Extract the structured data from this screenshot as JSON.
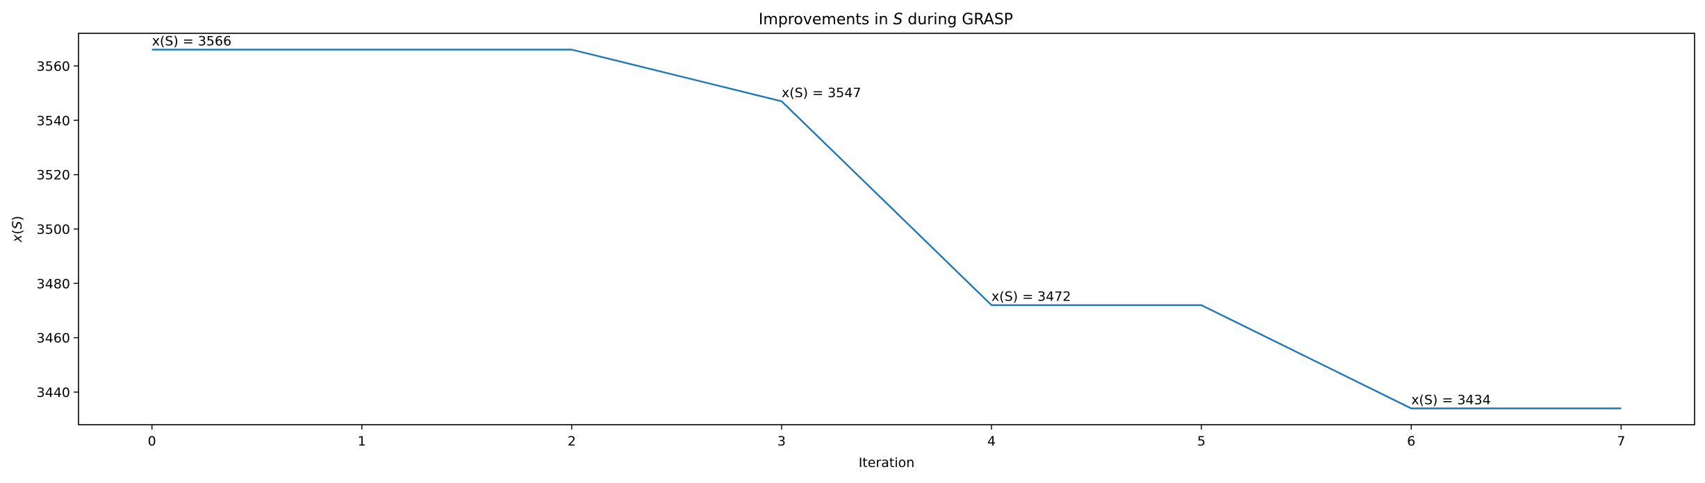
{
  "chart_data": {
    "type": "line",
    "title": "Improvements in S during GRASP",
    "title_parts": {
      "prefix": "Improvements in ",
      "italic": "S",
      "suffix": " during GRASP"
    },
    "xlabel": "Iteration",
    "ylabel": "x(S)",
    "ylabel_parts": {
      "italic_1": "x",
      "plain_1": "(",
      "italic_2": "S",
      "plain_2": ")"
    },
    "xlim": [
      -0.35,
      7.35
    ],
    "ylim": [
      3428,
      3572
    ],
    "xticks": [
      0,
      1,
      2,
      3,
      4,
      5,
      6,
      7
    ],
    "yticks": [
      3440,
      3460,
      3480,
      3500,
      3520,
      3540,
      3560
    ],
    "grid": false,
    "legend": "none",
    "series": [
      {
        "x": [
          0,
          1,
          2,
          3,
          4,
          5,
          6,
          7
        ],
        "values": [
          3566,
          3566,
          3566,
          3547,
          3472,
          3472,
          3434,
          3434
        ],
        "color": "#1f77b4"
      }
    ],
    "annotations": [
      {
        "x": 0,
        "y": 3566,
        "text": "x(S) = 3566"
      },
      {
        "x": 3,
        "y": 3547,
        "text": "x(S) = 3547"
      },
      {
        "x": 4,
        "y": 3472,
        "text": "x(S) = 3472"
      },
      {
        "x": 6,
        "y": 3434,
        "text": "x(S) = 3434"
      }
    ]
  }
}
